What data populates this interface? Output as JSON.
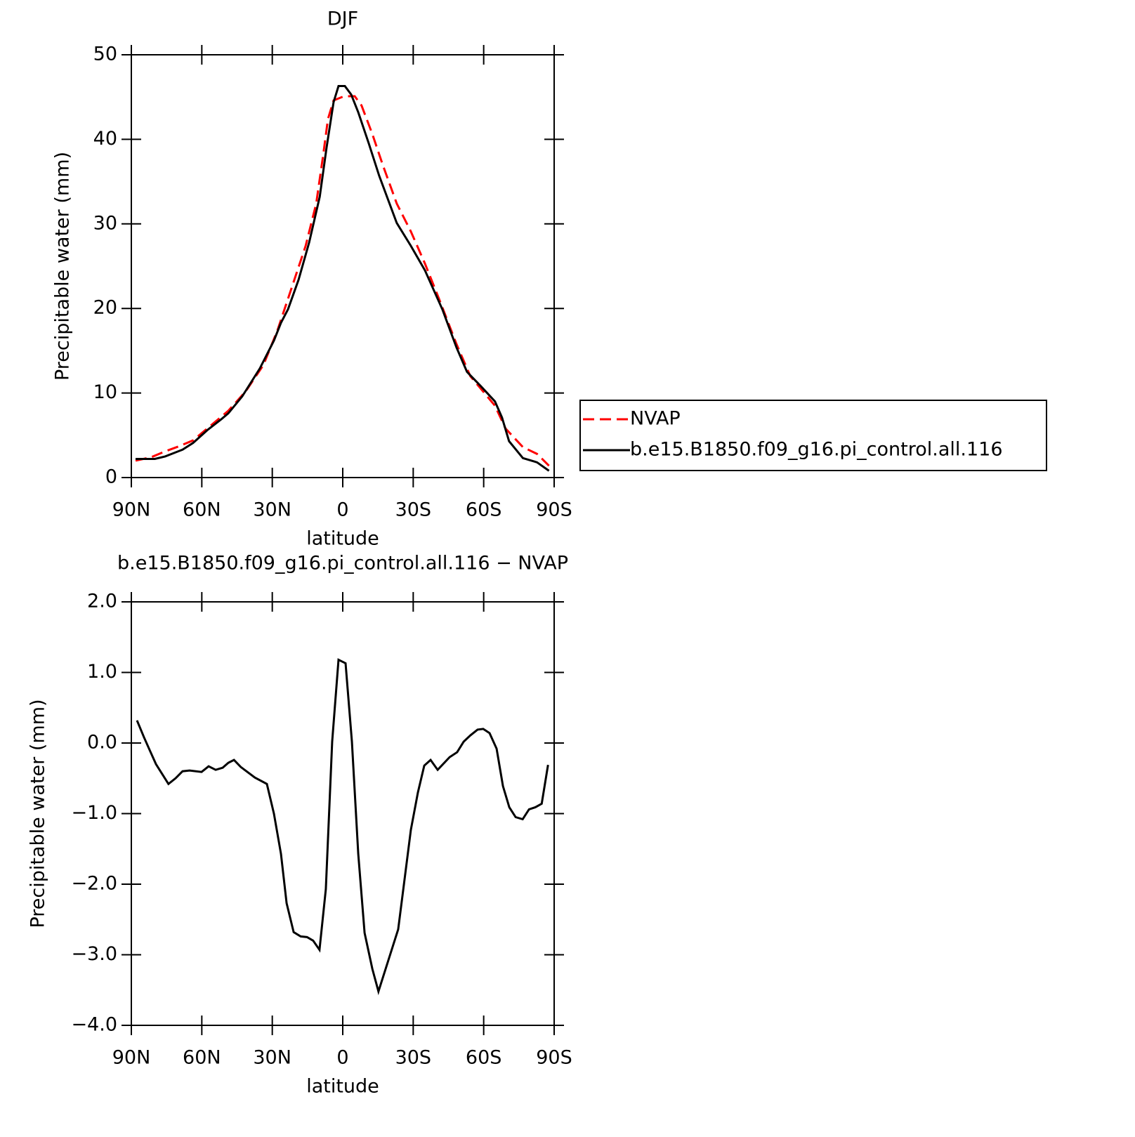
{
  "chart_data": [
    {
      "type": "line",
      "title": "DJF",
      "xlabel": "latitude",
      "ylabel": "Precipitable water (mm)",
      "xlim": [
        90,
        -90
      ],
      "xticks": [
        {
          "value": 90,
          "label": "90N"
        },
        {
          "value": 60,
          "label": "60N"
        },
        {
          "value": 30,
          "label": "30N"
        },
        0,
        {
          "value": -30,
          "label": "30S"
        },
        {
          "value": -60,
          "label": "60S"
        },
        {
          "value": -90,
          "label": "90S"
        }
      ],
      "ylim": [
        0,
        50
      ],
      "yticks": [
        0,
        10,
        20,
        30,
        40,
        50
      ],
      "legend": "right",
      "series": [
        {
          "name": "NVAP",
          "color": "#ff0000",
          "dash": true,
          "x": [
            88.2,
            81.6,
            75.6,
            69.7,
            63.7,
            57.7,
            48.7,
            41.3,
            33.8,
            27.8,
            21.8,
            15.8,
            11.3,
            8.3,
            6.3,
            3.9,
            -0.6,
            -5.1,
            -8,
            -12.5,
            -17,
            -23,
            -29,
            -35,
            -40.9,
            -48.4,
            -54.3,
            -60.3,
            -64.8,
            -69.3,
            -76.7,
            -82.7,
            -87.8
          ],
          "values": [
            2.0,
            2.4,
            3.1,
            3.7,
            4.4,
            5.8,
            7.9,
            10.2,
            13.3,
            17.4,
            22.4,
            27.4,
            32.4,
            38.2,
            42.4,
            44.6,
            45.1,
            45.1,
            44.0,
            40.7,
            37.0,
            32.4,
            29.1,
            25.3,
            21.2,
            15.8,
            12.0,
            10.0,
            8.5,
            5.8,
            3.6,
            2.8,
            1.4
          ]
        },
        {
          "name": "b.e15.B1850.f09_g16.pi_control.all.116",
          "color": "#000000",
          "dash": false,
          "x": [
            88.2,
            80,
            75.6,
            68.2,
            63.7,
            57.7,
            51.7,
            48.7,
            42.8,
            35.3,
            29.3,
            26.3,
            23.3,
            18.8,
            14.3,
            9.8,
            6.9,
            3.9,
            1.8,
            -0.9,
            -3.6,
            -6.6,
            -11.1,
            -15.5,
            -23,
            -29,
            -35,
            -42.4,
            -48.4,
            -52.9,
            -58.8,
            -64.8,
            -67.8,
            -70.8,
            -76.7,
            -82.7,
            -87.8
          ],
          "values": [
            2.2,
            2.2,
            2.5,
            3.3,
            4.1,
            5.6,
            6.9,
            7.6,
            9.6,
            12.9,
            16.2,
            18.3,
            19.9,
            23.4,
            27.8,
            33.2,
            39.0,
            44.4,
            46.3,
            46.3,
            45.3,
            43.2,
            39.5,
            35.7,
            30.1,
            27.4,
            24.5,
            19.9,
            15.4,
            12.5,
            10.8,
            9.0,
            7.1,
            4.3,
            2.3,
            1.8,
            0.8
          ]
        }
      ]
    },
    {
      "type": "line",
      "title": "b.e15.B1850.f09_g16.pi_control.all.116 − NVAP",
      "xlabel": "latitude",
      "ylabel": "Precipitable water (mm)",
      "xlim": [
        90,
        -90
      ],
      "xticks": [
        {
          "value": 90,
          "label": "90N"
        },
        {
          "value": 60,
          "label": "60N"
        },
        {
          "value": 30,
          "label": "30N"
        },
        0,
        {
          "value": -30,
          "label": "30S"
        },
        {
          "value": -60,
          "label": "60S"
        },
        {
          "value": -90,
          "label": "90S"
        }
      ],
      "ylim": [
        -4,
        2
      ],
      "yticks": [
        {
          "value": -4,
          "label": "−4.0"
        },
        {
          "value": -3,
          "label": "−3.0"
        },
        {
          "value": -2,
          "label": "−2.0"
        },
        {
          "value": -1,
          "label": "−1.0"
        },
        {
          "value": 0,
          "label": "0.0"
        },
        {
          "value": 1,
          "label": "1.0"
        },
        {
          "value": 2,
          "label": "2.0"
        }
      ],
      "series": [
        {
          "color": "#000000",
          "dash": false,
          "x": [
            87.6,
            84.6,
            82.2,
            79.5,
            74.2,
            71.2,
            68.2,
            65.2,
            60.1,
            57.1,
            54.1,
            51.1,
            48.7,
            46.3,
            43.4,
            37.4,
            32.3,
            29.3,
            26.3,
            23.9,
            20.9,
            17.9,
            15.2,
            12.6,
            9.9,
            7.2,
            4.5,
            1.8,
            -1.2,
            -3.9,
            -6.6,
            -9.3,
            -12.6,
            -15.2,
            -23.6,
            -29,
            -32,
            -34.7,
            -37.4,
            -40.4,
            -45.5,
            -48.7,
            -51.5,
            -54.4,
            -57.4,
            -59.8,
            -62.5,
            -65.5,
            -68.2,
            -70.9,
            -73.6,
            -76.6,
            -79.3,
            -82,
            -84.7,
            -87.4
          ],
          "values": [
            0.32,
            0.08,
            -0.1,
            -0.3,
            -0.58,
            -0.5,
            -0.4,
            -0.39,
            -0.41,
            -0.33,
            -0.38,
            -0.35,
            -0.28,
            -0.24,
            -0.34,
            -0.49,
            -0.58,
            -1.0,
            -1.57,
            -2.27,
            -2.68,
            -2.74,
            -2.75,
            -2.8,
            -2.93,
            -2.07,
            0.02,
            1.18,
            1.13,
            0.02,
            -1.57,
            -2.69,
            -3.2,
            -3.52,
            -2.64,
            -1.23,
            -0.7,
            -0.32,
            -0.24,
            -0.38,
            -0.2,
            -0.13,
            0.02,
            0.11,
            0.19,
            0.2,
            0.14,
            -0.08,
            -0.61,
            -0.91,
            -1.05,
            -1.08,
            -0.94,
            -0.91,
            -0.86,
            -0.31
          ]
        }
      ]
    }
  ]
}
